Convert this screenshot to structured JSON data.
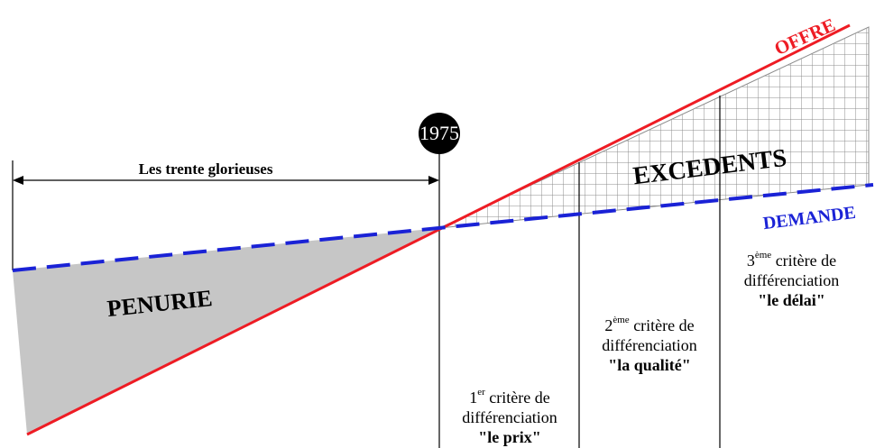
{
  "year_label": "1975",
  "period_label": "Les trente glorieuses",
  "curves": {
    "offre": "OFFRE",
    "demande": "DEMANDE"
  },
  "regions": {
    "penurie": "PENURIE",
    "excedents": "EXCEDENTS"
  },
  "criteria": [
    {
      "ord_num": "1",
      "ord_sup": "er",
      "line1_rest": " critère de",
      "line2": "différenciation",
      "line3": "\"le prix\""
    },
    {
      "ord_num": "2",
      "ord_sup": "ème",
      "line1_rest": " critère de",
      "line2": "différenciation",
      "line3": "\"la qualité\""
    },
    {
      "ord_num": "3",
      "ord_sup": "ème",
      "line1_rest": " critère de",
      "line2": "différenciation",
      "line3": "\"le délai\""
    }
  ],
  "colors": {
    "offre": "#ee1c24",
    "demande": "#1a22d6",
    "penurie_fill": "#c6c6c6",
    "grid": "#8c8c8c",
    "axis": "#000000",
    "year_circle": "#000000"
  }
}
